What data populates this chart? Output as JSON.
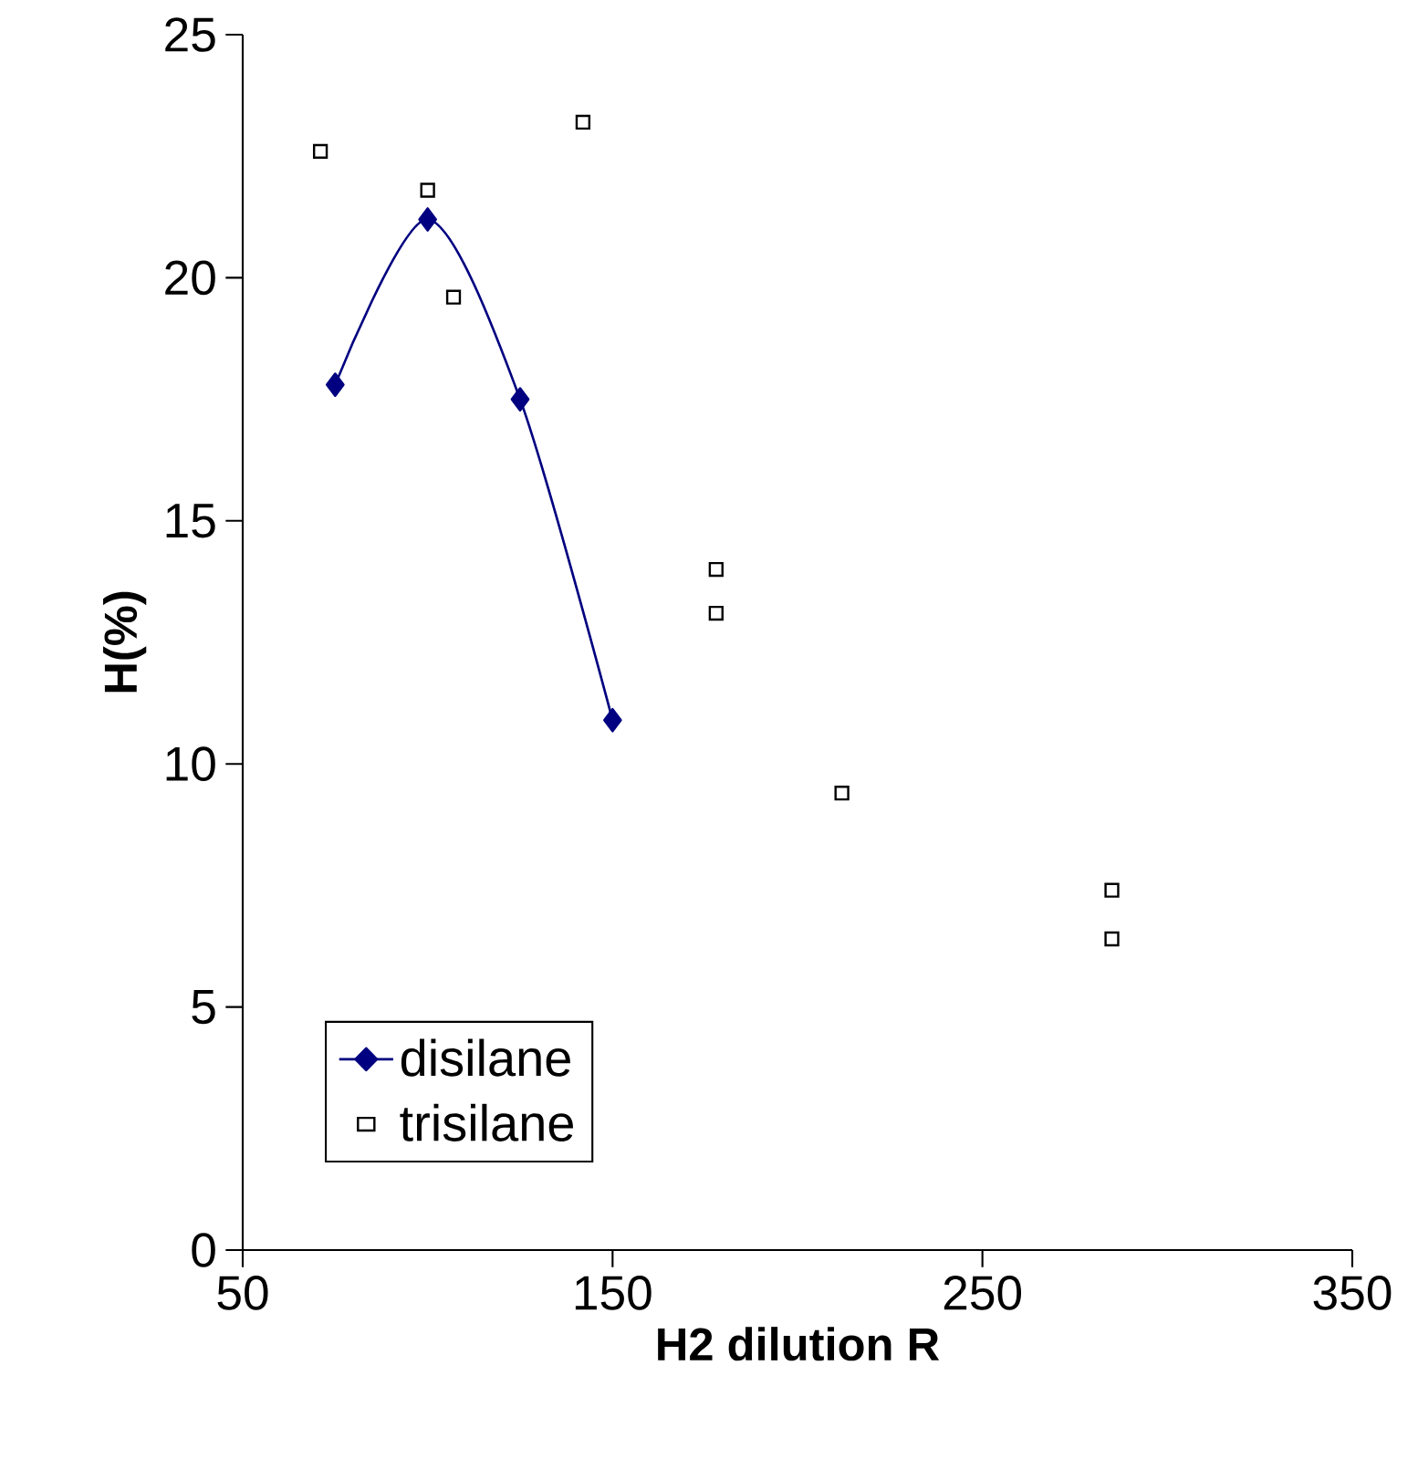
{
  "chart_data": {
    "type": "scatter",
    "xlabel": "H2 dilution R",
    "ylabel": "H(%)",
    "xlim": [
      50,
      350
    ],
    "xticks": [
      50,
      150,
      250,
      350
    ],
    "ylim": [
      0,
      25
    ],
    "yticks": [
      0,
      5,
      10,
      15,
      20,
      25
    ],
    "grid": false,
    "legend": "bottom left",
    "series": [
      {
        "name": "disilane",
        "type": "line",
        "color": "#000080",
        "marker": "diamond",
        "line_style": "solid",
        "x": [
          75,
          100,
          125,
          150
        ],
        "values": [
          17.8,
          21.2,
          17.5,
          10.9
        ]
      },
      {
        "name": "trisilane",
        "color": "#000000",
        "marker": "square",
        "x": [
          71,
          100,
          107,
          142,
          178,
          178,
          212,
          285,
          285
        ],
        "values": [
          22.6,
          21.8,
          19.6,
          23.2,
          14.0,
          13.1,
          9.4,
          7.4,
          6.4
        ]
      }
    ]
  }
}
